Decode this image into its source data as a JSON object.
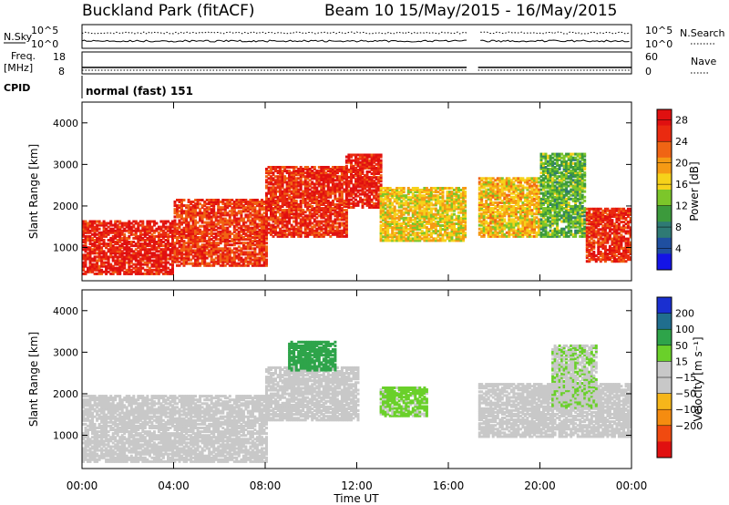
{
  "header": {
    "station": "Buckland Park (fitACF)",
    "beam_period": "Beam 10  15/May/2015 - 16/May/2015"
  },
  "top_panels": {
    "nsky_label": "N.Sky",
    "nsearch_label": "N.Search",
    "left_ticks": [
      "10^5",
      "10^0"
    ],
    "right_ticks": [
      "10^5",
      "10^0"
    ],
    "freq_label_1": "Freq.",
    "freq_label_2": "[MHz]",
    "freq_ticks": [
      "18",
      "8"
    ],
    "nave_label": "Nave",
    "nave_ticks": [
      "60",
      "0"
    ],
    "cpid_label": "CPID",
    "cpid_text": "normal (fast) 151"
  },
  "colors": {
    "power_scale": [
      "#1414e6",
      "#1f4fa0",
      "#2f7a74",
      "#3c9a3c",
      "#7cc62a",
      "#f6d21a",
      "#f59a14",
      "#f06414",
      "#ea2a10",
      "#e01010"
    ],
    "velocity_scale": [
      "#e01010",
      "#f04a10",
      "#f58c10",
      "#f6b61a",
      "#c8c8c8",
      "#c8c8c8",
      "#6ad02a",
      "#2ea44a",
      "#206e8e",
      "#1a2fd0"
    ]
  },
  "chart_data": [
    {
      "type": "heatmap",
      "name": "power",
      "ylabel": "Slant Range [km]",
      "yticks": [
        1000,
        2000,
        3000,
        4000
      ],
      "ylim": [
        200,
        4500
      ],
      "xlim": [
        0,
        24
      ],
      "colorbar_label": "Power [dB]",
      "colorbar_ticks": [
        4,
        8,
        12,
        16,
        20,
        24,
        28
      ],
      "colorbar_range": [
        0,
        30
      ],
      "gaps": [
        [
          16.8,
          17.3
        ]
      ],
      "echo_bands": [
        {
          "t0": 0,
          "t1": 4,
          "r0": 400,
          "r1": 1700,
          "value": 27
        },
        {
          "t0": 4,
          "t1": 8,
          "r0": 600,
          "r1": 2200,
          "value": 25
        },
        {
          "t0": 8,
          "t1": 11.5,
          "r0": 1300,
          "r1": 3000,
          "value": 26
        },
        {
          "t0": 11.5,
          "t1": 13,
          "r0": 2000,
          "r1": 3300,
          "value": 27
        },
        {
          "t0": 13,
          "t1": 16.8,
          "r0": 1200,
          "r1": 2500,
          "value": 17
        },
        {
          "t0": 17.3,
          "t1": 20,
          "r0": 1300,
          "r1": 2700,
          "value": 18
        },
        {
          "t0": 20,
          "t1": 22,
          "r0": 1300,
          "r1": 3300,
          "value": 12
        },
        {
          "t0": 22,
          "t1": 24,
          "r0": 700,
          "r1": 2000,
          "value": 26
        }
      ]
    },
    {
      "type": "heatmap",
      "name": "velocity",
      "ylabel": "Slant Range [km]",
      "xlabel": "Time UT",
      "xticks": [
        "00:00",
        "04:00",
        "08:00",
        "12:00",
        "16:00",
        "20:00",
        "00:00"
      ],
      "yticks": [
        1000,
        2000,
        3000,
        4000
      ],
      "ylim": [
        200,
        4500
      ],
      "xlim": [
        0,
        24
      ],
      "colorbar_label": "Velocity [m s⁻¹]",
      "colorbar_ticks": [
        200,
        100,
        50,
        15,
        -15,
        -50,
        -100,
        -200
      ],
      "gaps": [
        [
          16.8,
          17.3
        ]
      ],
      "echo_bands": [
        {
          "t0": 0,
          "t1": 8,
          "r0": 400,
          "r1": 2000,
          "value": 0
        },
        {
          "t0": 8,
          "t1": 12,
          "r0": 1400,
          "r1": 2700,
          "value": 0
        },
        {
          "t0": 9,
          "t1": 11,
          "r0": 2600,
          "r1": 3300,
          "value": 180
        },
        {
          "t0": 13,
          "t1": 15,
          "r0": 1500,
          "r1": 2200,
          "value": 60
        },
        {
          "t0": 17.3,
          "t1": 24,
          "r0": 1000,
          "r1": 2300,
          "value": 0
        },
        {
          "t0": 20.5,
          "t1": 22.5,
          "r0": 1700,
          "r1": 3200,
          "value": 45
        }
      ]
    }
  ]
}
